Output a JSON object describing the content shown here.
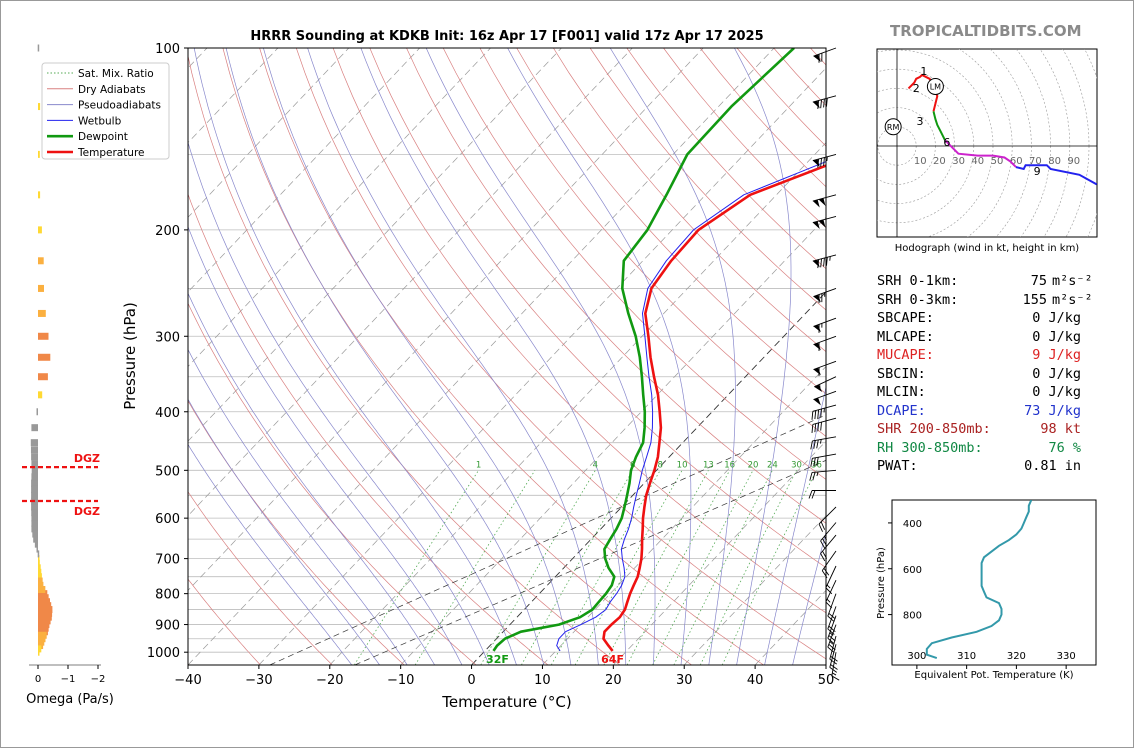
{
  "title": "HRRR Sounding at KDKB Init: 16z Apr 17 [F001] valid 17z Apr 17 2025",
  "branding": "TROPICALTIDBITS.COM",
  "colors": {
    "temperature": "#ee1111",
    "dewpoint": "#119911",
    "wetbulb": "#2222ee",
    "dry_adiabat": "#d98080",
    "moist_adiabat": "#8888cc",
    "mixing_ratio": "#55aa55",
    "isotherm": "#aaaaaa",
    "zero_isotherm": "#333333"
  },
  "chart_data": [
    {
      "type": "line",
      "name": "skewt",
      "xlabel": "Temperature (°C)",
      "ylabel": "Pressure (hPa)",
      "xlim": [
        -40,
        50
      ],
      "ylim": [
        1050,
        100
      ],
      "y_scale": "log",
      "x_ticks": [
        -40,
        -30,
        -20,
        -10,
        0,
        10,
        20,
        30,
        40,
        50
      ],
      "y_ticks": [
        100,
        200,
        300,
        400,
        500,
        600,
        700,
        800,
        900,
        1000
      ],
      "grid": true,
      "legend": {
        "position": "top-left",
        "entries": [
          "Sat. Mix. Ratio",
          "Dry Adiabats",
          "Pseudoadiabats",
          "Wetbulb",
          "Dewpoint",
          "Temperature"
        ]
      },
      "series": [
        {
          "name": "Temperature",
          "p": [
            995,
            975,
            950,
            925,
            900,
            875,
            850,
            825,
            800,
            775,
            750,
            725,
            700,
            675,
            650,
            625,
            600,
            575,
            550,
            525,
            500,
            475,
            450,
            425,
            400,
            375,
            350,
            325,
            300,
            275,
            250,
            225,
            200,
            175,
            150,
            125,
            100
          ],
          "t": [
            18.0,
            16.7,
            15.1,
            14.3,
            14.3,
            14.5,
            14.2,
            13.5,
            12.8,
            12.2,
            11.6,
            10.7,
            9.7,
            8.5,
            7.2,
            5.9,
            4.5,
            3.2,
            1.9,
            0.8,
            -0.3,
            -1.6,
            -3.3,
            -5.1,
            -7.4,
            -9.9,
            -12.9,
            -16.0,
            -19.1,
            -22.6,
            -25.1,
            -26.0,
            -26.3,
            -23.7,
            -14.3,
            -9.0,
            -2.9
          ]
        },
        {
          "name": "Dewpoint",
          "p": [
            995,
            975,
            950,
            925,
            900,
            875,
            850,
            825,
            800,
            775,
            750,
            725,
            700,
            675,
            650,
            625,
            600,
            575,
            550,
            525,
            500,
            475,
            450,
            425,
            400,
            375,
            350,
            325,
            300,
            275,
            250,
            225,
            200,
            175,
            150,
            125,
            100
          ],
          "t": [
            1.2,
            1.0,
            1.2,
            2.5,
            6.9,
            8.9,
            9.6,
            9.5,
            9.4,
            9.1,
            8.3,
            6.3,
            4.6,
            3.2,
            2.7,
            2.2,
            1.5,
            0.4,
            -0.8,
            -2.1,
            -3.6,
            -4.7,
            -5.6,
            -7.4,
            -9.5,
            -12.0,
            -14.6,
            -17.5,
            -20.9,
            -25.0,
            -29.2,
            -32.7,
            -33.5,
            -35.5,
            -38.0,
            -38.2,
            -37.2
          ]
        },
        {
          "name": "Wetbulb",
          "p": [
            995,
            975,
            950,
            925,
            900,
            875,
            850,
            825,
            800,
            775,
            750,
            725,
            700,
            675,
            650,
            625,
            600,
            575,
            550,
            525,
            500,
            475,
            450,
            425,
            400,
            375,
            350,
            325,
            300,
            275,
            250,
            225,
            200,
            175,
            150,
            125,
            100
          ],
          "t": [
            10.6,
            9.4,
            8.8,
            8.8,
            10.0,
            11.1,
            11.5,
            11.1,
            10.9,
            10.5,
            9.8,
            8.5,
            7.0,
            5.6,
            4.7,
            3.9,
            2.9,
            1.7,
            0.5,
            -0.7,
            -2.0,
            -3.2,
            -4.5,
            -6.3,
            -8.4,
            -10.8,
            -13.6,
            -16.5,
            -19.6,
            -23.0,
            -25.6,
            -26.7,
            -27.0,
            -24.6,
            -15.9,
            -10.3,
            -4.3
          ]
        }
      ],
      "annotations": [
        "64F",
        "32F",
        "1",
        "4",
        "6",
        "8",
        "10",
        "13",
        "16",
        "20",
        "24",
        "30",
        "36"
      ]
    },
    {
      "type": "bar",
      "name": "omega",
      "xlabel": "Omega (Pa/s)",
      "x_ticks": [
        0,
        -1,
        -2
      ],
      "xlim": [
        0.2,
        -2.2
      ],
      "p": [
        100,
        125,
        150,
        175,
        200,
        225,
        250,
        275,
        300,
        325,
        350,
        375,
        400,
        425,
        450,
        475,
        500,
        525,
        550,
        575,
        600,
        625,
        650,
        675,
        700,
        725,
        750,
        775,
        800,
        825,
        850,
        875,
        900,
        925,
        950,
        975,
        1000
      ],
      "values": [
        0.01,
        -0.07,
        -0.06,
        -0.07,
        -0.13,
        -0.19,
        -0.2,
        -0.26,
        -0.35,
        -0.41,
        -0.33,
        -0.14,
        0.05,
        0.22,
        0.24,
        0.23,
        0.21,
        0.23,
        0.23,
        0.23,
        0.22,
        0.22,
        0.16,
        0.05,
        -0.03,
        -0.09,
        -0.13,
        -0.18,
        -0.31,
        -0.4,
        -0.48,
        -0.46,
        -0.38,
        -0.33,
        -0.25,
        -0.17,
        -0.05
      ],
      "dgz_labels": [
        "DGZ",
        "DGZ"
      ],
      "dgz_p": [
        494,
        562
      ]
    },
    {
      "type": "line",
      "name": "hodograph",
      "caption": "Hodograph (wind in kt, height in km)",
      "ring_labels": [
        "10",
        "20",
        "30",
        "40",
        "50",
        "60",
        "70",
        "80",
        "90"
      ],
      "height_labels": [
        "1",
        "2",
        "3",
        "6",
        "9"
      ],
      "markers": [
        "RM",
        "LM"
      ],
      "segments": [
        {
          "color": "#ee1111",
          "u": [
            6,
            9,
            10,
            12,
            13,
            17,
            19,
            21,
            20,
            19
          ],
          "v": [
            30,
            33,
            35,
            36,
            37,
            35,
            31,
            26,
            22,
            18
          ]
        },
        {
          "color": "#119911",
          "u": [
            19,
            20,
            21,
            23,
            25
          ],
          "v": [
            18,
            14,
            11,
            7,
            3
          ]
        },
        {
          "color": "#cc22cc",
          "u": [
            25,
            32,
            42,
            50,
            56,
            59,
            62
          ],
          "v": [
            3,
            -4,
            -5,
            -5,
            -6,
            -8,
            -11
          ]
        },
        {
          "color": "#2222ee",
          "u": [
            62,
            66,
            67,
            78,
            80,
            95,
            104
          ],
          "v": [
            -11,
            -12,
            -10,
            -10,
            -12,
            -15,
            -20
          ]
        }
      ]
    },
    {
      "type": "line",
      "name": "theta_e",
      "xlabel": "Equivalent Pot. Temperature (K)",
      "ylabel": "Pressure (hPa)",
      "xlim": [
        295,
        336
      ],
      "ylim": [
        1020,
        300
      ],
      "x_ticks": [
        300,
        310,
        320,
        330
      ],
      "y_ticks": [
        400,
        600,
        800
      ],
      "series": [
        {
          "name": "",
          "p": [
            990,
            975,
            950,
            925,
            900,
            875,
            850,
            825,
            800,
            775,
            750,
            725,
            700,
            675,
            650,
            625,
            600,
            575,
            550,
            525,
            500,
            475,
            450,
            425,
            400,
            375,
            350,
            325,
            300
          ],
          "theta_e": [
            304.0,
            302.0,
            302.0,
            303.0,
            307.0,
            312.0,
            315.0,
            316.5,
            317.0,
            317.0,
            316.5,
            314.0,
            313.5,
            313.0,
            313.0,
            313.0,
            313.0,
            313.0,
            313.5,
            315.0,
            316.5,
            318.5,
            320.0,
            321.0,
            321.5,
            322.0,
            322.5,
            322.5,
            323.0
          ]
        }
      ]
    }
  ],
  "stats": [
    {
      "label": "SRH 0-1km:",
      "value": "75",
      "unit": "m²s⁻²",
      "color": "#000000"
    },
    {
      "label": "SRH 0-3km:",
      "value": "155",
      "unit": "m²s⁻²",
      "color": "#000000"
    },
    {
      "label": "SBCAPE:",
      "value": "0 J/kg",
      "unit": "",
      "color": "#000000"
    },
    {
      "label": "MLCAPE:",
      "value": "0 J/kg",
      "unit": "",
      "color": "#000000"
    },
    {
      "label": "MUCAPE:",
      "value": "9 J/kg",
      "unit": "",
      "color": "#dd2222"
    },
    {
      "label": "SBCIN:",
      "value": "0 J/kg",
      "unit": "",
      "color": "#000000"
    },
    {
      "label": "MLCIN:",
      "value": "0 J/kg",
      "unit": "",
      "color": "#000000"
    },
    {
      "label": "DCAPE:",
      "value": "73 J/kg",
      "unit": "",
      "color": "#2233cc"
    },
    {
      "label": "SHR 200-850mb:",
      "value": "98 kt",
      "unit": "",
      "color": "#aa2222"
    },
    {
      "label": "RH 300-850mb:",
      "value": "76 %",
      "unit": "",
      "color": "#118844"
    },
    {
      "label": "PWAT:",
      "value": "0.81 in",
      "unit": "",
      "color": "#000000"
    }
  ],
  "wind_profile": {
    "p": [
      100,
      120,
      150,
      175,
      190,
      220,
      250,
      280,
      300,
      330,
      350,
      370,
      390,
      410,
      440,
      470,
      500,
      540,
      575,
      610,
      640,
      680,
      720,
      760,
      800,
      840,
      870,
      900,
      940,
      970,
      1000
    ],
    "speed_kt": [
      70,
      90,
      85,
      100,
      100,
      95,
      75,
      65,
      60,
      60,
      55,
      50,
      45,
      40,
      35,
      30,
      25,
      20,
      20,
      25,
      20,
      20,
      15,
      15,
      20,
      20,
      25,
      25,
      20,
      20,
      15
    ],
    "dir_deg": [
      250,
      255,
      255,
      255,
      255,
      255,
      250,
      250,
      250,
      250,
      245,
      250,
      255,
      255,
      260,
      260,
      265,
      270,
      225,
      220,
      220,
      215,
      205,
      205,
      200,
      200,
      200,
      200,
      195,
      195,
      190
    ]
  }
}
